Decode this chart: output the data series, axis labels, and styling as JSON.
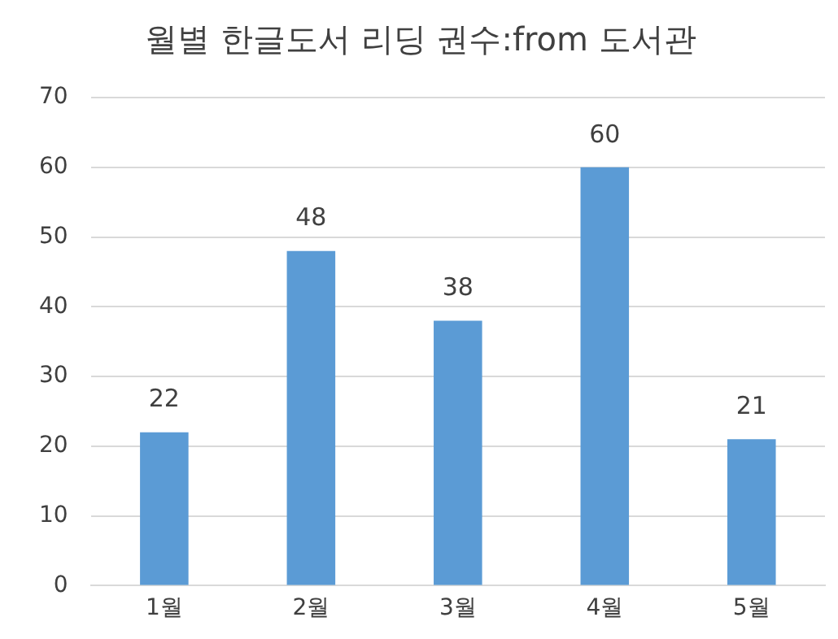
{
  "chart_data": {
    "type": "bar",
    "title": "월별 한글도서 리딩 권수:from 도서관",
    "categories": [
      "1월",
      "2월",
      "3월",
      "4월",
      "5월"
    ],
    "values": [
      22,
      48,
      38,
      60,
      21
    ],
    "color": "#5b9bd5",
    "ylim": [
      0,
      70
    ],
    "yticks": [
      0,
      10,
      20,
      30,
      40,
      50,
      60,
      70
    ],
    "grid": "y",
    "data_labels": true,
    "legend": false
  }
}
